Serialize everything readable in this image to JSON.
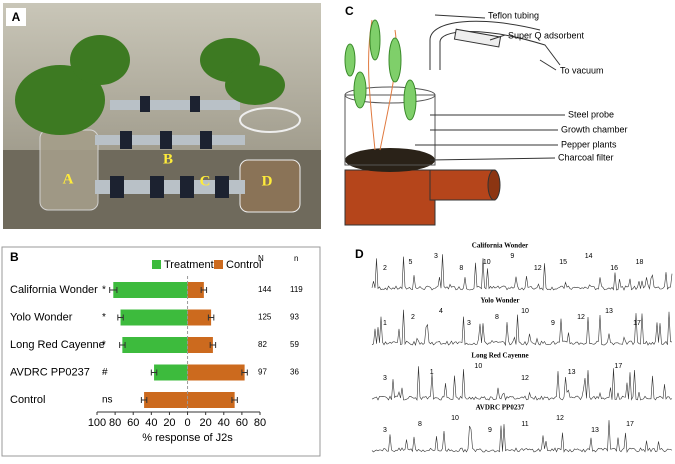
{
  "panels": {
    "a": {
      "letter": "A",
      "labels": [
        "A",
        "B",
        "C",
        "D"
      ]
    },
    "c": {
      "letter": "C",
      "labels": [
        "Teflon tubing",
        "Super Q adsorbent",
        "To vacuum",
        "Steel probe",
        "Growth chamber",
        "Pepper plants",
        "Charcoal filter"
      ]
    },
    "d": {
      "letter": "D",
      "traces": [
        {
          "title": "California Wonder",
          "peaks": [
            "2",
            "5",
            "3",
            "8",
            "10",
            "9",
            "12",
            "15",
            "14",
            "16",
            "18"
          ]
        },
        {
          "title": "Yolo Wonder",
          "peaks": [
            "1",
            "2",
            "4",
            "3",
            "8",
            "10",
            "9",
            "12",
            "13",
            "17"
          ]
        },
        {
          "title": "Long Red Cayenne",
          "peaks": [
            "3",
            "1",
            "10",
            "12",
            "13",
            "17"
          ]
        },
        {
          "title": "AVDRC PP0237",
          "peaks": [
            "3",
            "8",
            "10",
            "9",
            "11",
            "12",
            "13",
            "17"
          ]
        }
      ]
    }
  },
  "chart_data": {
    "type": "diverging-bar",
    "panel_letter": "B",
    "x_label": "% response of J2s",
    "categories": [
      "California Wonder",
      "Yolo Wonder",
      "Long Red Cayenne",
      "AVDRC PP0237",
      "Control"
    ],
    "series": [
      {
        "name": "Treatment",
        "color": "#3dbb3d",
        "colors": [
          "#3dbb3d",
          "#3dbb3d",
          "#3dbb3d",
          "#3dbb3d",
          "#cc6a1e"
        ],
        "values": [
          82,
          74,
          72,
          37,
          48
        ],
        "errors": [
          4,
          3,
          3,
          3,
          3
        ],
        "side": "left"
      },
      {
        "name": "Control",
        "color": "#cc6a1e",
        "values": [
          18,
          26,
          28,
          63,
          52
        ],
        "errors": [
          3,
          3,
          3,
          3,
          3
        ],
        "side": "right"
      }
    ],
    "significance": [
      "*",
      "*",
      "*",
      "#",
      "ns"
    ],
    "N_header": "N",
    "N": [
      144,
      125,
      82,
      97,
      null
    ],
    "n_header": "n",
    "n": [
      119,
      93,
      59,
      36,
      null
    ],
    "xlim": [
      -100,
      80
    ],
    "xticks": [
      {
        "value": -100,
        "label": "100"
      },
      {
        "value": -80,
        "label": "80"
      },
      {
        "value": -60,
        "label": "60"
      },
      {
        "value": -40,
        "label": "40"
      },
      {
        "value": -20,
        "label": "20"
      },
      0,
      20,
      40,
      60,
      80
    ]
  }
}
